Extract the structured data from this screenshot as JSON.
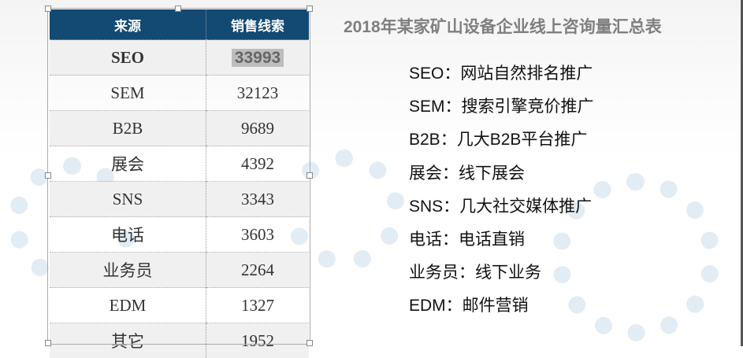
{
  "slide": {
    "title": "2018年某家矿山设备企业线上咨询量汇总表",
    "table": {
      "headers": [
        "来源",
        "销售线索"
      ],
      "rows": [
        {
          "source": "SEO",
          "leads": "33993"
        },
        {
          "source": "SEM",
          "leads": "32123"
        },
        {
          "source": "B2B",
          "leads": "9689"
        },
        {
          "source": "展会",
          "leads": "4392"
        },
        {
          "source": "SNS",
          "leads": "3343"
        },
        {
          "source": "电话",
          "leads": "3603"
        },
        {
          "source": "业务员",
          "leads": "2264"
        },
        {
          "source": "EDM",
          "leads": "1327"
        },
        {
          "source": "其它",
          "leads": "1952"
        }
      ]
    },
    "legend": [
      "SEO：网站自然排名推广",
      "SEM：搜索引擎竞价推广",
      "B2B：几大B2B平台推广",
      "展会：线下展会",
      "SNS：几大社交媒体推广",
      "电话：电话直销",
      "业务员：线下业务",
      "EDM：邮件营销"
    ],
    "colors": {
      "header_bg": "#124a74",
      "title": "#7f7f7f"
    }
  }
}
